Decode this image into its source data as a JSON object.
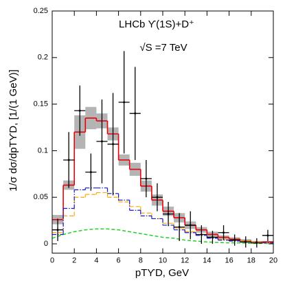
{
  "chart_data": {
    "type": "histogram",
    "annotations": [
      "LHCb ϒ(1S)+D⁺",
      "√S =7 TeV"
    ],
    "xlabel": "pTϒD, GeV",
    "ylabel": "1/σ dσ/dpTϒD, [1/(1 GeV)]",
    "xlim": [
      0,
      20
    ],
    "ylim": [
      -0.01,
      0.25
    ],
    "xticks": [
      0,
      2,
      4,
      6,
      8,
      10,
      12,
      14,
      16,
      18,
      20
    ],
    "yticks": [
      0,
      0.05,
      0.1,
      0.15,
      0.2,
      0.25
    ],
    "bins": [
      0,
      1,
      2,
      3,
      4,
      5,
      6,
      7,
      8,
      9,
      10,
      11,
      12,
      13,
      14,
      15,
      16,
      17,
      18,
      19,
      20
    ],
    "band": {
      "color": "#b4b4b4",
      "values": [
        0.026,
        0.063,
        0.12,
        0.135,
        0.132,
        0.118,
        0.09,
        0.08,
        0.062,
        0.047,
        0.035,
        0.028,
        0.02,
        0.015,
        0.01,
        0.007,
        0.005,
        0.003,
        0.002,
        0.002
      ],
      "errors": [
        0.005,
        0.005,
        0.018,
        0.012,
        0.008,
        0.007,
        0.006,
        0.007,
        0.006,
        0.006,
        0.005,
        0.005,
        0.004,
        0.003,
        0.003,
        0.002,
        0.002,
        0.002,
        0.001,
        0.001
      ]
    },
    "histograms": [
      {
        "color": "#e8000b",
        "style": "solid",
        "values": [
          0.026,
          0.063,
          0.12,
          0.135,
          0.132,
          0.118,
          0.09,
          0.08,
          0.062,
          0.047,
          0.035,
          0.028,
          0.02,
          0.015,
          0.01,
          0.007,
          0.005,
          0.003,
          0.002,
          0.002
        ]
      },
      {
        "color": "#ffa500",
        "style": "dashed",
        "values": [
          0.012,
          0.03,
          0.05,
          0.053,
          0.055,
          0.05,
          0.045,
          0.04,
          0.033,
          0.027,
          0.022,
          0.017,
          0.013,
          0.01,
          0.007,
          0.005,
          0.004,
          0.003,
          0.002,
          0.001
        ]
      },
      {
        "color": "#1414d2",
        "style": "dashdot",
        "values": [
          0.01,
          0.038,
          0.058,
          0.06,
          0.06,
          0.054,
          0.047,
          0.036,
          0.03,
          0.027,
          0.02,
          0.015,
          0.012,
          0.009,
          0.006,
          0.004,
          0.003,
          0.002,
          0.001,
          0.001
        ]
      }
    ],
    "curve": {
      "color": "#22d022",
      "x": [
        0,
        1,
        2,
        3,
        4,
        5,
        6,
        7,
        8,
        9,
        10,
        11,
        12,
        13,
        14,
        15,
        16,
        17,
        18,
        19,
        20
      ],
      "values": [
        0.006,
        0.01,
        0.013,
        0.015,
        0.016,
        0.016,
        0.015,
        0.013,
        0.011,
        0.009,
        0.007,
        0.006,
        0.004,
        0.003,
        0.002,
        0.0015,
        0.001,
        0.001,
        0.0005,
        0.0005,
        0.0003
      ]
    },
    "points": {
      "color": "#000000",
      "x": [
        0.5,
        1.5,
        2.5,
        3.5,
        4.5,
        5.5,
        6.5,
        7.5,
        8.5,
        9.5,
        10.5,
        11.5,
        12.5,
        13.5,
        14.5,
        15.5,
        16.5,
        17.5,
        18.5,
        19.5
      ],
      "xerr": [
        0.5,
        0.5,
        0.5,
        0.5,
        0.5,
        0.5,
        0.5,
        0.5,
        0.5,
        0.5,
        0.5,
        0.5,
        0.5,
        0.5,
        0.5,
        0.5,
        0.5,
        0.5,
        0.5,
        0.5
      ],
      "values": [
        0.015,
        0.09,
        0.143,
        0.077,
        0.11,
        0.107,
        0.152,
        0.14,
        0.07,
        0.05,
        0.032,
        0.018,
        0.02,
        0.01,
        0.007,
        0.012,
        0.004,
        0.002,
        0.001,
        0.009
      ],
      "errors": [
        0.012,
        0.03,
        0.027,
        0.02,
        0.045,
        0.055,
        0.055,
        0.05,
        0.02,
        0.015,
        0.013,
        0.015,
        0.015,
        0.01,
        0.007,
        0.008,
        0.006,
        0.006,
        0.005,
        0.006
      ]
    }
  }
}
